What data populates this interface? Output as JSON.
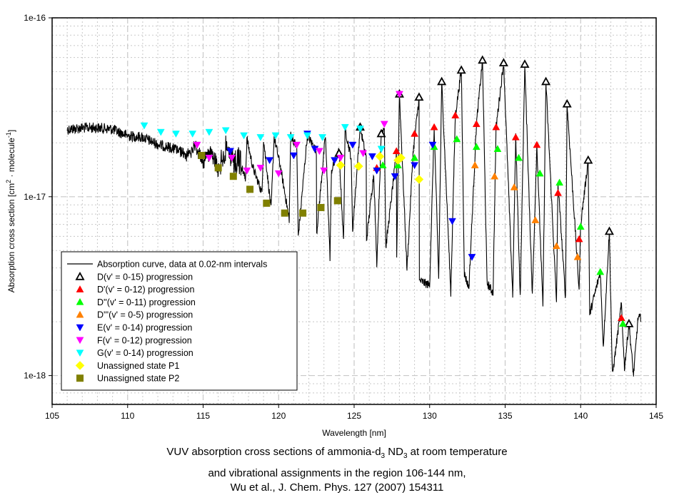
{
  "chart_data": {
    "type": "line",
    "title": "VUV absorption cross sections of ammonia-d3 ND3 at room temperature and vibrational assignments in the region 106-144 nm, Wu et al., J. Chem. Phys. 127 (2007) 154311",
    "caption_lines": [
      {
        "pre": "VUV absorption cross sections of ammonia-d",
        "sub1": "3",
        "mid": " ND",
        "sub2": "3",
        "post": " at room temperature"
      },
      {
        "text": "and vibrational assignments in the region 106-144 nm,"
      },
      {
        "text": "Wu et al., J. Chem. Phys. 127 (2007) 154311"
      }
    ],
    "xlabel": "Wavelength [nm]",
    "ylabel_pre": "Absorption cross section [cm",
    "ylabel_sup1": "2",
    "ylabel_mid": " · molecule",
    "ylabel_sup2": "-1",
    "ylabel_post": "]",
    "xlim": [
      105,
      145
    ],
    "ylim": [
      6.9e-19,
      1e-16
    ],
    "yscale": "log",
    "grid": true,
    "x_ticks": [
      105,
      110,
      115,
      120,
      125,
      130,
      135,
      140,
      145
    ],
    "x_tick_labels": [
      "105",
      "110",
      "115",
      "120",
      "125",
      "130",
      "135",
      "140",
      "145"
    ],
    "y_ticks": [
      1e-18,
      1e-17,
      1e-16
    ],
    "y_tick_labels": [
      "1e-18",
      "1e-17",
      "1e-16"
    ],
    "legend_position": "bottom-left",
    "absorption_curve": {
      "name": "Absorption curve, data at 0.02-nm intervals",
      "color": "#000000",
      "envelope_peaks": [
        [
          106.0,
          2.55e-17
        ],
        [
          107.0,
          2.6e-17
        ],
        [
          108.0,
          2.6e-17
        ],
        [
          109.0,
          2.55e-17
        ],
        [
          110.0,
          2.35e-17
        ],
        [
          111.0,
          2.3e-17
        ],
        [
          112.0,
          2.1e-17
        ],
        [
          113.0,
          2e-17
        ],
        [
          114.0,
          1.9e-17
        ],
        [
          114.5,
          2.15e-17
        ],
        [
          115.0,
          1.8e-17
        ],
        [
          115.5,
          2.2e-17
        ],
        [
          116.0,
          1.7e-17
        ],
        [
          116.5,
          2.2e-17
        ],
        [
          117.2,
          1.85e-17
        ],
        [
          117.9,
          2.1e-17
        ],
        [
          118.3,
          1.45e-17
        ],
        [
          119.0,
          2.1e-17
        ],
        [
          119.7,
          2.15e-17
        ],
        [
          120.1,
          1.5e-17
        ],
        [
          120.8,
          2.2e-17
        ],
        [
          121.2,
          1.9e-17
        ],
        [
          121.9,
          2.2e-17
        ],
        [
          122.5,
          1.8e-17
        ],
        [
          123.1,
          2.2e-17
        ],
        [
          123.5,
          1.4e-17
        ],
        [
          124.0,
          1.8e-17
        ],
        [
          124.4,
          2.4e-17
        ],
        [
          124.8,
          1.65e-17
        ],
        [
          125.4,
          2.45e-17
        ],
        [
          125.8,
          1.65e-17
        ],
        [
          126.3,
          1.35e-17
        ],
        [
          126.8,
          2.25e-17
        ],
        [
          127.0,
          2.5e-17
        ],
        [
          127.8,
          1.75e-17
        ],
        [
          128.0,
          3.75e-17
        ],
        [
          128.9,
          1.75e-17
        ],
        [
          129.3,
          3.6e-17
        ],
        [
          130.3,
          2.45e-17
        ],
        [
          130.8,
          4.4e-17
        ],
        [
          131.7,
          2.85e-17
        ],
        [
          132.1,
          5.1e-17
        ],
        [
          133.1,
          2.55e-17
        ],
        [
          133.5,
          5.8e-17
        ],
        [
          134.4,
          2.45e-17
        ],
        [
          134.9,
          5.6e-17
        ],
        [
          135.7,
          2.15e-17
        ],
        [
          136.3,
          5.5e-17
        ],
        [
          137.1,
          1.95e-17
        ],
        [
          137.7,
          4.4e-17
        ],
        [
          138.5,
          1.2e-17
        ],
        [
          139.1,
          3.3e-17
        ],
        [
          140.0,
          7e-18
        ],
        [
          140.5,
          1.6e-17
        ],
        [
          141.3,
          3.8e-18
        ],
        [
          141.9,
          6.4e-18
        ],
        [
          142.7,
          2.5e-18
        ],
        [
          143.2,
          1.95e-18
        ],
        [
          143.8,
          2.1e-18
        ]
      ],
      "envelope_valleys": [
        [
          117.8,
          1.25e-17
        ],
        [
          118.9,
          1.05e-17
        ],
        [
          119.5,
          8.5e-18
        ],
        [
          120.7,
          7.5e-18
        ],
        [
          121.3,
          6e-18
        ],
        [
          122.5,
          6e-18
        ],
        [
          123.4,
          4.6e-18
        ],
        [
          124.3,
          5.6e-18
        ],
        [
          124.9,
          6.5e-18
        ],
        [
          125.8,
          5.5e-18
        ],
        [
          126.5,
          4.2e-18
        ],
        [
          127.1,
          5.2e-18
        ],
        [
          127.8,
          3.8e-18
        ],
        [
          128.5,
          3.9e-18
        ],
        [
          129.3,
          3.4e-18
        ],
        [
          130.0,
          3.2e-18
        ],
        [
          130.6,
          3.5e-18
        ],
        [
          131.4,
          2.9e-18
        ],
        [
          132.3,
          3.7e-18
        ],
        [
          132.6,
          3.1e-18
        ],
        [
          133.8,
          3.3e-18
        ],
        [
          134.2,
          2.9e-18
        ],
        [
          135.5,
          2.8e-18
        ],
        [
          136.0,
          2.7e-18
        ],
        [
          136.8,
          2.8e-18
        ],
        [
          137.5,
          2.4e-18
        ],
        [
          138.4,
          2.55e-18
        ],
        [
          139.0,
          2.7e-18
        ],
        [
          139.9,
          3e-18
        ],
        [
          140.6,
          2.2e-18
        ],
        [
          141.5,
          1.45e-18
        ],
        [
          142.1,
          1e-18
        ],
        [
          142.9,
          1.1e-18
        ],
        [
          143.5,
          1e-18
        ]
      ]
    },
    "series": [
      {
        "name": "D(v' = 0-15) progression",
        "marker": "triangle-up-open",
        "color": "#000000",
        "points": [
          [
            124.0,
            1.75e-17
          ],
          [
            125.4,
            2.45e-17
          ],
          [
            126.8,
            2.25e-17
          ],
          [
            128.0,
            3.75e-17
          ],
          [
            129.3,
            3.6e-17
          ],
          [
            130.8,
            4.4e-17
          ],
          [
            132.1,
            5.1e-17
          ],
          [
            133.5,
            5.8e-17
          ],
          [
            134.9,
            5.6e-17
          ],
          [
            136.3,
            5.5e-17
          ],
          [
            137.7,
            4.4e-17
          ],
          [
            139.1,
            3.3e-17
          ],
          [
            140.5,
            1.6e-17
          ],
          [
            141.9,
            6.4e-18
          ],
          [
            143.2,
            1.95e-18
          ]
        ]
      },
      {
        "name": "D'(v' = 0-12) progression",
        "marker": "triangle-up",
        "color": "#ff0000",
        "points": [
          [
            126.5,
            1.45e-17
          ],
          [
            127.8,
            1.8e-17
          ],
          [
            129.0,
            2.25e-17
          ],
          [
            130.3,
            2.45e-17
          ],
          [
            131.7,
            2.85e-17
          ],
          [
            133.1,
            2.55e-17
          ],
          [
            134.4,
            2.45e-17
          ],
          [
            135.7,
            2.15e-17
          ],
          [
            137.1,
            1.95e-17
          ],
          [
            138.5,
            1.05e-17
          ],
          [
            139.9,
            5.8e-18
          ],
          [
            142.7,
            2.1e-18
          ]
        ]
      },
      {
        "name": "D''(v' = 0-11) progression",
        "marker": "triangle-up",
        "color": "#00ff00",
        "points": [
          [
            126.9,
            1.5e-17
          ],
          [
            127.9,
            1.5e-17
          ],
          [
            129.0,
            1.65e-17
          ],
          [
            130.3,
            1.9e-17
          ],
          [
            131.8,
            2.1e-17
          ],
          [
            133.1,
            1.9e-17
          ],
          [
            134.5,
            1.85e-17
          ],
          [
            135.9,
            1.65e-17
          ],
          [
            137.3,
            1.35e-17
          ],
          [
            138.6,
            1.2e-17
          ],
          [
            140.0,
            6.8e-18
          ],
          [
            141.3,
            3.8e-18
          ],
          [
            142.8,
            1.95e-18
          ]
        ]
      },
      {
        "name": "D'''(v' = 0-5) progression",
        "marker": "triangle-up",
        "color": "#ff8000",
        "points": [
          [
            133.0,
            1.5e-17
          ],
          [
            134.3,
            1.3e-17
          ],
          [
            135.6,
            1.13e-17
          ],
          [
            137.0,
            7.4e-18
          ],
          [
            138.4,
            5.3e-18
          ],
          [
            139.8,
            4.6e-18
          ]
        ]
      },
      {
        "name": "E(v' = 0-14) progression",
        "marker": "triangle-down",
        "color": "#0000ff",
        "points": [
          [
            116.8,
            1.8e-17
          ],
          [
            119.4,
            1.6e-17
          ],
          [
            121.0,
            1.7e-17
          ],
          [
            122.4,
            1.85e-17
          ],
          [
            123.7,
            1.6e-17
          ],
          [
            124.9,
            1.95e-17
          ],
          [
            126.2,
            1.68e-17
          ],
          [
            126.5,
            1.4e-17
          ],
          [
            127.7,
            1.3e-17
          ],
          [
            129.0,
            1.5e-17
          ],
          [
            130.2,
            1.95e-17
          ],
          [
            131.5,
            7.3e-18
          ],
          [
            132.8,
            4.6e-18
          ],
          [
            121.9,
            2.25e-17
          ]
        ]
      },
      {
        "name": "F(v' = 0-12) progression",
        "marker": "triangle-down",
        "color": "#ff00ff",
        "points": [
          [
            114.6,
            1.95e-17
          ],
          [
            115.4,
            1.65e-17
          ],
          [
            116.9,
            1.65e-17
          ],
          [
            117.9,
            1.4e-17
          ],
          [
            118.8,
            1.45e-17
          ],
          [
            120.0,
            1.35e-17
          ],
          [
            121.2,
            1.95e-17
          ],
          [
            122.7,
            1.8e-17
          ],
          [
            124.1,
            1.65e-17
          ],
          [
            125.6,
            1.75e-17
          ],
          [
            127.0,
            2.55e-17
          ],
          [
            128.0,
            3.75e-17
          ],
          [
            123.0,
            1.4e-17
          ]
        ]
      },
      {
        "name": "G(v' = 0-14) progression",
        "marker": "triangle-down",
        "color": "#00ffff",
        "points": [
          [
            111.1,
            2.5e-17
          ],
          [
            112.2,
            2.3e-17
          ],
          [
            113.2,
            2.25e-17
          ],
          [
            114.3,
            2.25e-17
          ],
          [
            115.4,
            2.3e-17
          ],
          [
            116.5,
            2.35e-17
          ],
          [
            117.7,
            2.2e-17
          ],
          [
            118.8,
            2.15e-17
          ],
          [
            119.8,
            2.2e-17
          ],
          [
            120.8,
            2.15e-17
          ],
          [
            121.9,
            2.2e-17
          ],
          [
            122.9,
            2.15e-17
          ],
          [
            124.4,
            2.45e-17
          ],
          [
            125.4,
            2.4e-17
          ],
          [
            126.8,
            1.85e-17
          ]
        ]
      },
      {
        "name": "Unassigned state P1",
        "marker": "diamond",
        "color": "#ffff00",
        "points": [
          [
            124.1,
            1.5e-17
          ],
          [
            125.3,
            1.48e-17
          ],
          [
            126.7,
            1.68e-17
          ],
          [
            127.9,
            1.6e-17
          ],
          [
            129.3,
            1.25e-17
          ],
          [
            128.1,
            1.65e-17
          ]
        ]
      },
      {
        "name": "Unassigned state P2",
        "marker": "square",
        "color": "#808000",
        "points": [
          [
            114.9,
            1.7e-17
          ],
          [
            116.0,
            1.45e-17
          ],
          [
            117.0,
            1.3e-17
          ],
          [
            118.1,
            1.1e-17
          ],
          [
            119.2,
            9.2e-18
          ],
          [
            120.4,
            8.1e-18
          ],
          [
            121.6,
            8.1e-18
          ],
          [
            122.8,
            8.7e-18
          ],
          [
            123.9,
            9.5e-18
          ]
        ]
      }
    ]
  }
}
